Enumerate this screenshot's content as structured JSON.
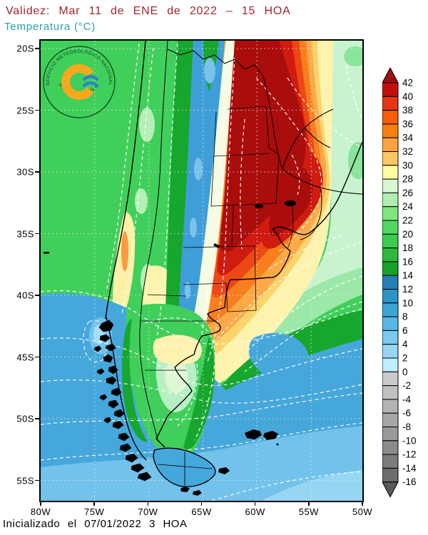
{
  "header": {
    "validity_label": "Validez: Mar 11 de ENE de 2022 – 15 HOA",
    "variable_label": "Temperatura (°C)"
  },
  "footer": {
    "initialized_label": "Inicializado el 07/01/2022 3 HOA"
  },
  "logo": {
    "arc_text": "SERVICIO METEOROLÓGICO NACIONAL",
    "bottom_text": "ARGENTINA"
  },
  "axes": {
    "lat_ticks": [
      "20S",
      "25S",
      "30S",
      "35S",
      "40S",
      "45S",
      "50S",
      "55S"
    ],
    "lon_ticks": [
      "80W",
      "75W",
      "70W",
      "65W",
      "60W",
      "55W",
      "50W"
    ]
  },
  "colorbar": {
    "units": "°C",
    "boundary_labels": [
      "42",
      "40",
      "38",
      "36",
      "34",
      "32",
      "30",
      "28",
      "26",
      "24",
      "22",
      "20",
      "18",
      "16",
      "14",
      "12",
      "10",
      "8",
      "6",
      "4",
      "2",
      "0",
      "-2",
      "-4",
      "-6",
      "-8",
      "-10",
      "-12",
      "-14",
      "-16"
    ],
    "cell_colors_top_to_bottom": [
      "#c30e0d",
      "#e73413",
      "#fa5c0a",
      "#fc7e12",
      "#fda33e",
      "#fdc763",
      "#fdfda1",
      "#d8f6d0",
      "#b0efb0",
      "#7fe67f",
      "#4fd95f",
      "#3bcc4f",
      "#2bb83e",
      "#16a227",
      "#2380b5",
      "#2b94c7",
      "#3ba5d7",
      "#57b7e6",
      "#79c9f0",
      "#95d6f4",
      "#beeffe",
      "#cbcbcb",
      "#c0c0c0",
      "#b4b4b4",
      "#a7a7a7",
      "#999999",
      "#8b8b8b",
      "#7c7c7c",
      "#6c6c6c"
    ],
    "arrow_top_color": "#9e0f0f",
    "arrow_bottom_color": "#595959"
  },
  "colors": {
    "title_text": "#a3242f",
    "subtitle_text": "#2b9dae",
    "axis_text": "#000000",
    "map_base_green": "#41cf5b"
  }
}
